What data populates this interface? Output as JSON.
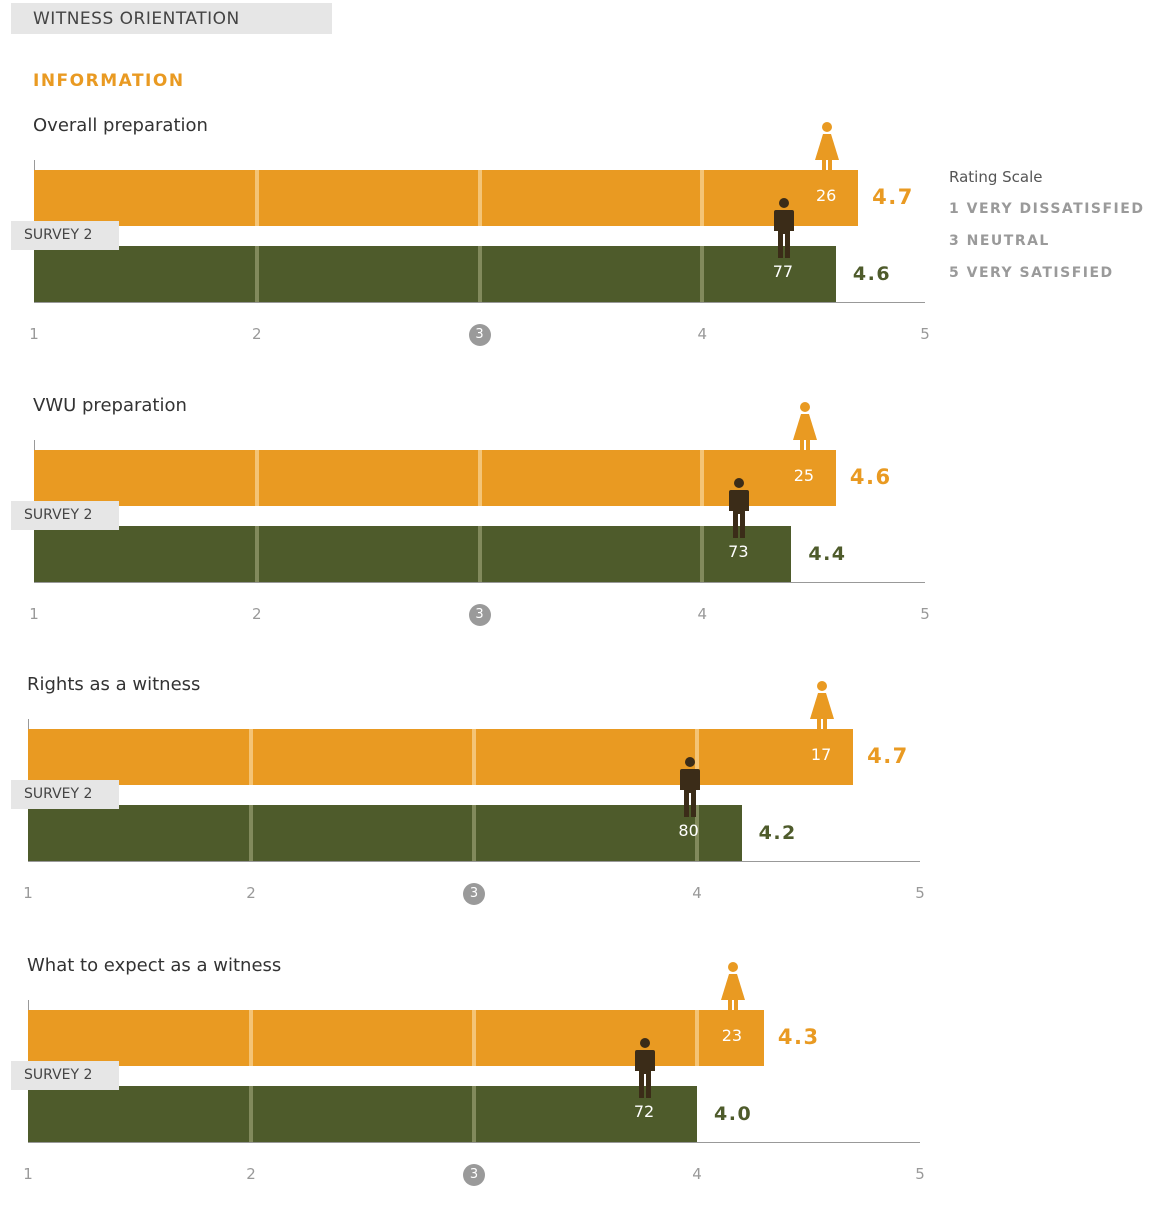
{
  "header": {
    "title": "WITNESS ORIENTATION"
  },
  "section": {
    "title": "INFORMATION"
  },
  "legend": {
    "title": "Rating Scale",
    "items": [
      "1 VERY DISSATISFIED",
      "3 NEUTRAL",
      "5 VERY SATISFIED"
    ]
  },
  "colors": {
    "female": "#e99a22",
    "male": "#4e5b2b",
    "female_icon": "#e99a22",
    "male_icon": "#3b2c18"
  },
  "icons": {
    "female": "female-person-icon",
    "male": "male-person-icon"
  },
  "chart_data": {
    "type": "bar",
    "orientation": "horizontal",
    "xlim": [
      1,
      5
    ],
    "ticks": [
      "1",
      "2",
      "3",
      "4",
      "5"
    ],
    "group_label": "SURVEY 2",
    "panels": [
      {
        "title": "Overall preparation",
        "female": {
          "value": "4.7",
          "count": "26"
        },
        "male": {
          "value": "4.6",
          "count": "77"
        }
      },
      {
        "title": "VWU preparation",
        "female": {
          "value": "4.6",
          "count": "25"
        },
        "male": {
          "value": "4.4",
          "count": "73"
        }
      },
      {
        "title": "Rights as a witness",
        "female": {
          "value": "4.7",
          "count": "17"
        },
        "male": {
          "value": "4.2",
          "count": "80"
        }
      },
      {
        "title": "What to expect as a witness",
        "female": {
          "value": "4.3",
          "count": "23"
        },
        "male": {
          "value": "4.0",
          "count": "72"
        }
      }
    ]
  }
}
